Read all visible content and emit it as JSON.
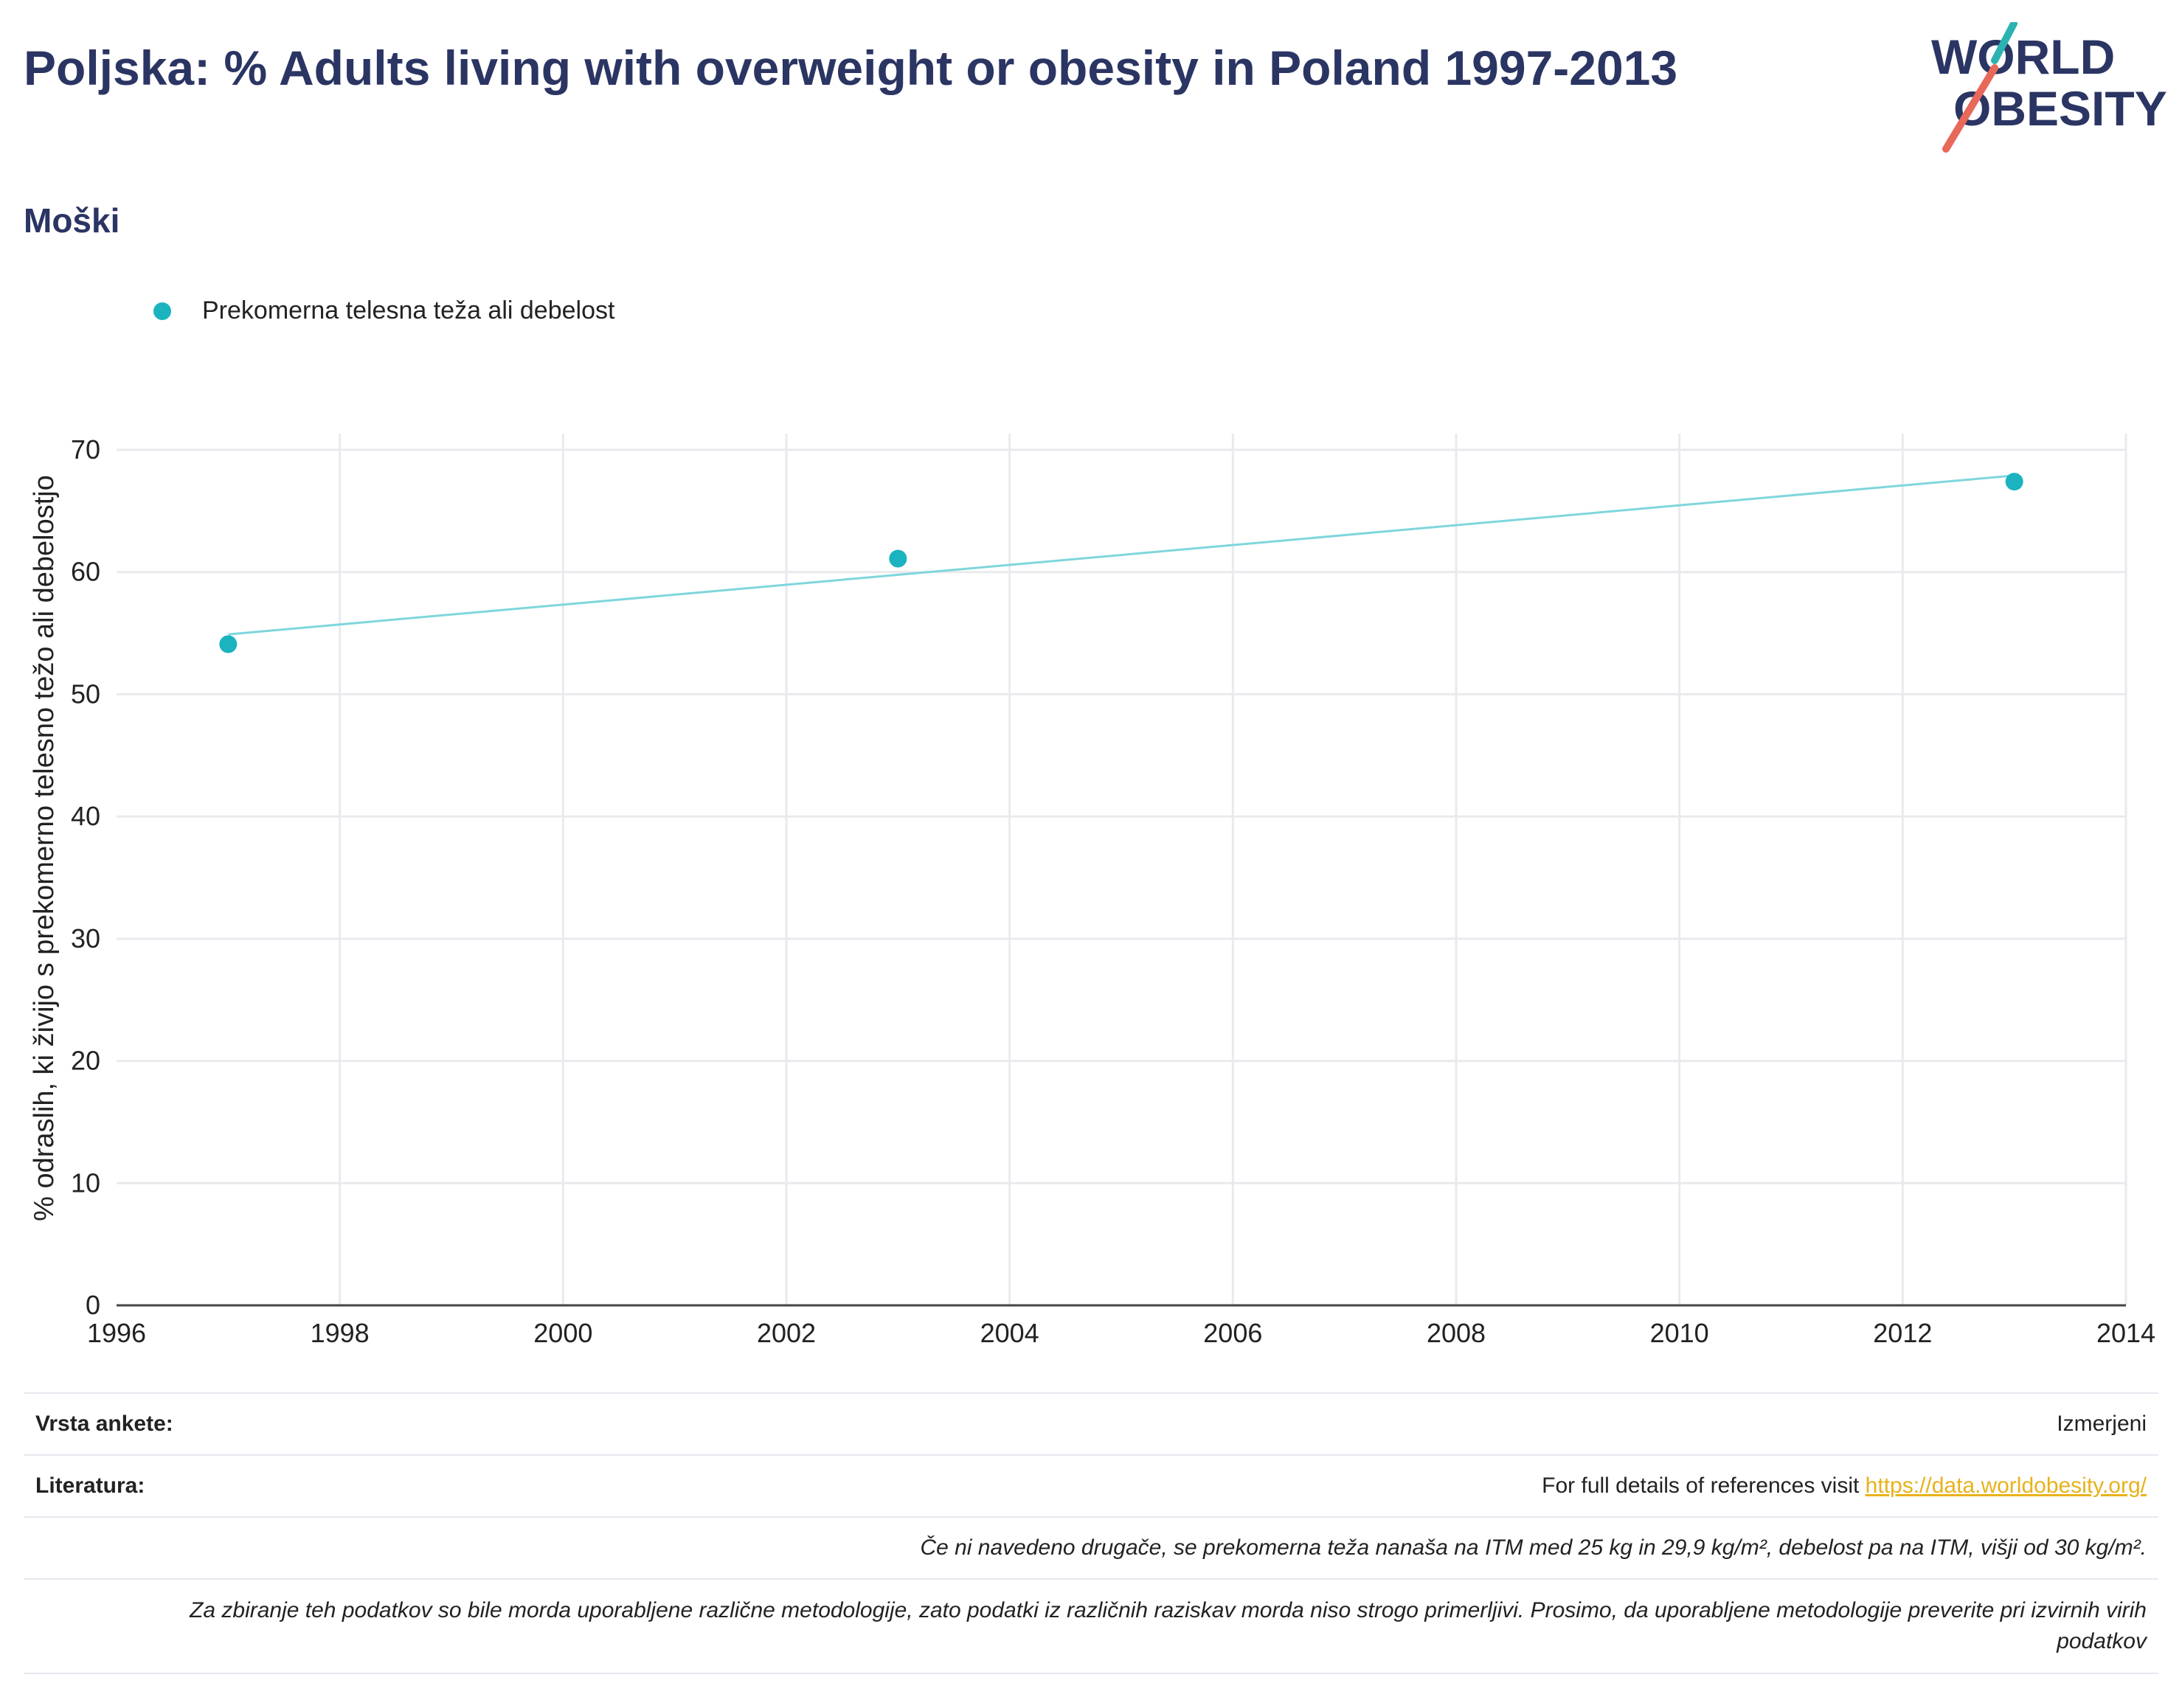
{
  "header": {
    "title": "Poljska: % Adults living with overweight or obesity in Poland 1997-2013",
    "subtitle": "Moški"
  },
  "logo": {
    "line1": "WORLD",
    "line2": "OBESITY",
    "accent_teal": "#2bb3b1",
    "accent_red": "#e8685a",
    "text_color": "#2b3563"
  },
  "legend": {
    "label": "Prekomerna telesna teža ali debelost",
    "color": "#1ab3bf"
  },
  "chart_data": {
    "type": "scatter",
    "ylabel": "% odraslih, ki živijo s prekomerno telesno težo ali debelostjo",
    "xlabel": "",
    "xlim": [
      1996,
      2014
    ],
    "ylim": [
      0,
      70
    ],
    "xticks": [
      1996,
      1998,
      2000,
      2002,
      2004,
      2006,
      2008,
      2010,
      2012,
      2014
    ],
    "yticks": [
      0,
      10,
      20,
      30,
      40,
      50,
      60,
      70
    ],
    "grid": true,
    "series": [
      {
        "name": "Prekomerna telesna teža ali debelost",
        "color": "#1ab3bf",
        "x": [
          1997,
          2003,
          2013
        ],
        "y": [
          54.1,
          61.1,
          67.4
        ]
      }
    ],
    "trendline": {
      "color": "#7fd6db",
      "x": [
        1997,
        2013
      ],
      "y": [
        54.9,
        67.9
      ]
    }
  },
  "footer": {
    "survey_label": "Vrsta ankete:",
    "survey_value": "Izmerjeni",
    "references_label": "Literatura:",
    "references_text": "For full details of references visit ",
    "references_link": "https://data.worldobesity.org/",
    "note1": "Če ni navedeno drugače, se prekomerna teža nanaša na ITM med 25 kg in 29,9 kg/m², debelost pa na ITM, višji od 30 kg/m².",
    "note2": "Za zbiranje teh podatkov so bile morda uporabljene različne metodologije, zato podatki iz različnih raziskav morda niso strogo primerljivi. Prosimo, da uporabljene metodologije preverite pri izvirnih virih podatkov"
  }
}
